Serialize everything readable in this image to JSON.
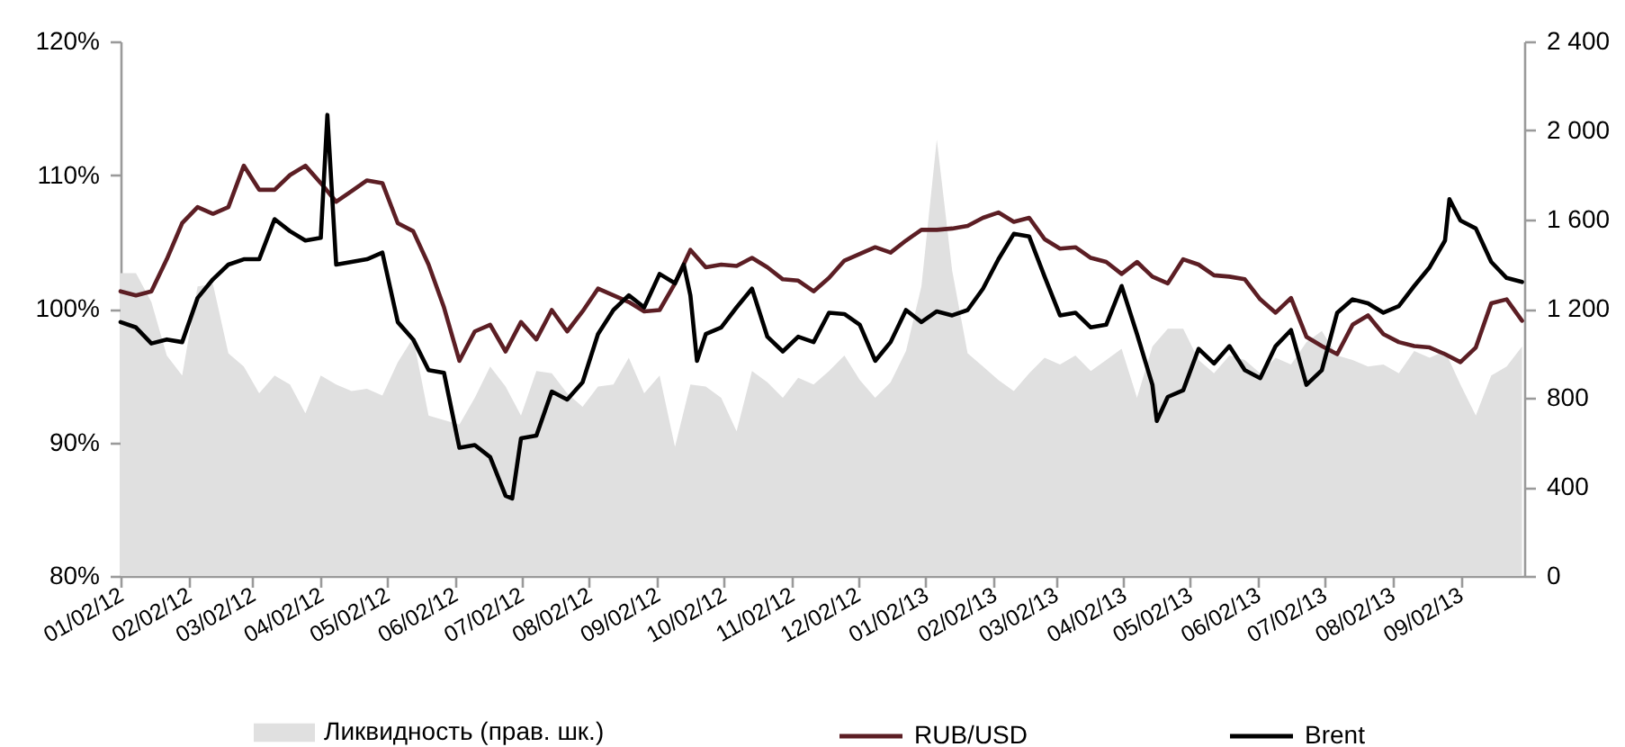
{
  "chart_data": {
    "type": "line",
    "x": [
      "2012-01-02",
      "2012-01-09",
      "2012-01-16",
      "2012-01-23",
      "2012-01-30",
      "2012-02-06",
      "2012-02-13",
      "2012-02-20",
      "2012-02-27",
      "2012-03-05",
      "2012-03-12",
      "2012-03-19",
      "2012-03-26",
      "2012-04-02",
      "2012-04-09",
      "2012-04-16",
      "2012-04-23",
      "2012-04-30",
      "2012-05-07",
      "2012-05-14",
      "2012-05-21",
      "2012-05-28",
      "2012-06-04",
      "2012-06-11",
      "2012-06-18",
      "2012-06-25",
      "2012-07-02",
      "2012-07-09",
      "2012-07-16",
      "2012-07-23",
      "2012-07-30",
      "2012-08-06",
      "2012-08-13",
      "2012-08-20",
      "2012-08-27",
      "2012-09-03",
      "2012-09-10",
      "2012-09-17",
      "2012-09-24",
      "2012-10-01",
      "2012-10-08",
      "2012-10-15",
      "2012-10-22",
      "2012-10-29",
      "2012-11-05",
      "2012-11-12",
      "2012-11-19",
      "2012-11-26",
      "2012-12-03",
      "2012-12-10",
      "2012-12-17",
      "2012-12-24",
      "2012-12-31",
      "2013-01-07",
      "2013-01-14",
      "2013-01-21",
      "2013-01-28",
      "2013-02-04",
      "2013-02-11",
      "2013-02-18",
      "2013-02-25",
      "2013-03-04",
      "2013-03-11",
      "2013-03-18",
      "2013-03-25",
      "2013-04-01",
      "2013-04-08",
      "2013-04-15",
      "2013-04-22",
      "2013-04-29",
      "2013-05-06",
      "2013-05-13",
      "2013-05-20",
      "2013-05-27",
      "2013-06-03",
      "2013-06-10",
      "2013-06-17",
      "2013-06-24",
      "2013-07-01",
      "2013-07-08",
      "2013-07-15",
      "2013-07-22",
      "2013-07-29",
      "2013-08-05",
      "2013-08-12",
      "2013-08-19",
      "2013-08-26",
      "2013-09-02",
      "2013-09-09",
      "2013-09-16",
      "2013-09-23",
      "2013-09-30"
    ],
    "xlim": [
      "2012-01-02",
      "2013-10-01"
    ],
    "xticks": [
      {
        "value": "2012-01-02",
        "label": "01/02/12"
      },
      {
        "value": "2012-02-02",
        "label": "02/02/12"
      },
      {
        "value": "2012-03-02",
        "label": "03/02/12"
      },
      {
        "value": "2012-04-02",
        "label": "04/02/12"
      },
      {
        "value": "2012-05-02",
        "label": "05/02/12"
      },
      {
        "value": "2012-06-02",
        "label": "06/02/12"
      },
      {
        "value": "2012-07-02",
        "label": "07/02/12"
      },
      {
        "value": "2012-08-02",
        "label": "08/02/12"
      },
      {
        "value": "2012-09-02",
        "label": "09/02/12"
      },
      {
        "value": "2012-10-02",
        "label": "10/02/12"
      },
      {
        "value": "2012-11-02",
        "label": "11/02/12"
      },
      {
        "value": "2012-12-02",
        "label": "12/02/12"
      },
      {
        "value": "2013-01-02",
        "label": "01/02/13"
      },
      {
        "value": "2013-02-02",
        "label": "02/02/13"
      },
      {
        "value": "2013-03-02",
        "label": "03/02/13"
      },
      {
        "value": "2013-04-02",
        "label": "04/02/13"
      },
      {
        "value": "2013-05-02",
        "label": "05/02/13"
      },
      {
        "value": "2013-06-02",
        "label": "06/02/13"
      },
      {
        "value": "2013-07-02",
        "label": "07/02/13"
      },
      {
        "value": "2013-08-02",
        "label": "08/02/13"
      },
      {
        "value": "2013-09-02",
        "label": "09/02/13"
      }
    ],
    "ylim": [
      80,
      120
    ],
    "yticks": [
      {
        "value": 80,
        "label": "80%"
      },
      {
        "value": 90,
        "label": "90%"
      },
      {
        "value": 100,
        "label": "100%"
      },
      {
        "value": 110,
        "label": "110%"
      },
      {
        "value": 120,
        "label": "120%"
      }
    ],
    "y2lim": [
      0,
      2400
    ],
    "y2ticks": [
      0,
      400,
      800,
      {
        "value": 1200,
        "label": "1 200"
      },
      {
        "value": 1600,
        "label": "1 600"
      },
      {
        "value": 2000,
        "label": "2 000"
      },
      {
        "value": 2400,
        "label": "2 400"
      }
    ],
    "legend": "bottom",
    "series": [
      {
        "name": "Ликвидность (прав. шк.)",
        "type": "area",
        "axis": "y2",
        "color": "#e0e0e0",
        "values": [
          1360,
          1360,
          1230,
          990,
          900,
          1300,
          1310,
          1000,
          940,
          820,
          900,
          860,
          730,
          900,
          860,
          830,
          840,
          810,
          960,
          1070,
          720,
          700,
          680,
          800,
          940,
          850,
          720,
          920,
          910,
          820,
          760,
          850,
          860,
          980,
          820,
          900,
          580,
          860,
          850,
          800,
          650,
          920,
          870,
          800,
          890,
          860,
          920,
          990,
          880,
          800,
          870,
          1010,
          1300,
          1960,
          1370,
          1000,
          940,
          880,
          830,
          910,
          980,
          950,
          990,
          920,
          970,
          1020,
          800,
          1030,
          1110,
          1110,
          970,
          910,
          990,
          970,
          910,
          980,
          950,
          1050,
          1100,
          990,
          970,
          940,
          950,
          910,
          1010,
          980,
          1010,
          860,
          720,
          900,
          940,
          1030
        ]
      },
      {
        "name": "RUB/USD",
        "color": "#5c1e24",
        "values": [
          101.3,
          101.0,
          101.3,
          103.7,
          106.4,
          107.6,
          107.1,
          107.6,
          110.7,
          108.9,
          108.9,
          110.0,
          110.7,
          109.4,
          108.0,
          108.8,
          109.6,
          109.4,
          106.4,
          105.8,
          103.3,
          100.1,
          96.1,
          98.3,
          98.8,
          96.8,
          99.0,
          97.7,
          99.9,
          98.3,
          99.8,
          101.5,
          101.0,
          100.5,
          99.8,
          99.9,
          101.9,
          104.4,
          103.1,
          103.3,
          103.2,
          103.8,
          103.1,
          102.2,
          102.1,
          101.3,
          102.3,
          103.6,
          104.1,
          104.6,
          104.2,
          105.1,
          105.9,
          105.9,
          106.0,
          106.2,
          106.8,
          107.2,
          106.5,
          106.8,
          105.2,
          104.5,
          104.6,
          103.8,
          103.5,
          102.6,
          103.5,
          102.4,
          101.9,
          103.7,
          103.3,
          102.5,
          102.4,
          102.2,
          100.7,
          99.7,
          100.8,
          97.9,
          97.2,
          96.6,
          98.8,
          99.5,
          98.1,
          97.5,
          97.2,
          97.1,
          96.6,
          96.0,
          97.1,
          100.4,
          100.7,
          99.1
        ]
      },
      {
        "name": "Brent",
        "color": "#000000",
        "x": [
          "2012-01-02",
          "2012-01-09",
          "2012-01-16",
          "2012-01-23",
          "2012-01-30",
          "2012-02-06",
          "2012-02-13",
          "2012-02-20",
          "2012-02-27",
          "2012-03-05",
          "2012-03-12",
          "2012-03-19",
          "2012-03-26",
          "2012-04-02",
          "2012-04-05",
          "2012-04-09",
          "2012-04-16",
          "2012-04-23",
          "2012-04-30",
          "2012-05-07",
          "2012-05-14",
          "2012-05-21",
          "2012-05-28",
          "2012-06-04",
          "2012-06-11",
          "2012-06-18",
          "2012-06-25",
          "2012-06-28",
          "2012-07-02",
          "2012-07-09",
          "2012-07-16",
          "2012-07-23",
          "2012-07-30",
          "2012-08-06",
          "2012-08-13",
          "2012-08-20",
          "2012-08-27",
          "2012-09-03",
          "2012-09-10",
          "2012-09-14",
          "2012-09-17",
          "2012-09-20",
          "2012-09-24",
          "2012-10-01",
          "2012-10-08",
          "2012-10-15",
          "2012-10-22",
          "2012-10-29",
          "2012-11-05",
          "2012-11-12",
          "2012-11-19",
          "2012-11-26",
          "2012-12-03",
          "2012-12-10",
          "2012-12-17",
          "2012-12-24",
          "2012-12-31",
          "2013-01-07",
          "2013-01-14",
          "2013-01-21",
          "2013-01-28",
          "2013-02-04",
          "2013-02-11",
          "2013-02-18",
          "2013-02-25",
          "2013-03-04",
          "2013-03-11",
          "2013-03-18",
          "2013-03-25",
          "2013-04-01",
          "2013-04-08",
          "2013-04-15",
          "2013-04-17",
          "2013-04-22",
          "2013-04-29",
          "2013-05-06",
          "2013-05-13",
          "2013-05-20",
          "2013-05-27",
          "2013-06-03",
          "2013-06-10",
          "2013-06-17",
          "2013-06-24",
          "2013-07-01",
          "2013-07-08",
          "2013-07-15",
          "2013-07-22",
          "2013-07-29",
          "2013-08-05",
          "2013-08-12",
          "2013-08-19",
          "2013-08-26",
          "2013-08-28",
          "2013-09-02",
          "2013-09-09",
          "2013-09-16",
          "2013-09-23",
          "2013-09-30"
        ],
        "values": [
          99.0,
          98.6,
          97.4,
          97.7,
          97.5,
          100.8,
          102.2,
          103.3,
          103.7,
          103.7,
          106.7,
          105.8,
          105.1,
          105.3,
          114.5,
          103.3,
          103.5,
          103.7,
          104.2,
          99.0,
          97.7,
          95.4,
          95.2,
          89.6,
          89.8,
          88.9,
          86.0,
          85.8,
          90.3,
          90.5,
          93.8,
          93.2,
          94.5,
          98.1,
          99.9,
          101.0,
          100.1,
          102.6,
          101.9,
          103.3,
          101.0,
          96.1,
          98.1,
          98.6,
          100.1,
          101.5,
          97.9,
          96.8,
          97.9,
          97.5,
          99.7,
          99.6,
          98.8,
          96.1,
          97.5,
          99.9,
          99.0,
          99.8,
          99.5,
          99.9,
          101.5,
          103.7,
          105.6,
          105.4,
          102.4,
          99.5,
          99.7,
          98.6,
          98.8,
          101.7,
          98.1,
          94.3,
          91.6,
          93.4,
          93.9,
          97.0,
          95.9,
          97.2,
          95.4,
          94.8,
          97.2,
          98.4,
          94.3,
          95.4,
          99.7,
          100.7,
          100.4,
          99.7,
          100.2,
          101.7,
          103.1,
          105.1,
          108.2,
          106.6,
          106.0,
          103.5,
          102.3,
          102.0
        ]
      }
    ]
  }
}
